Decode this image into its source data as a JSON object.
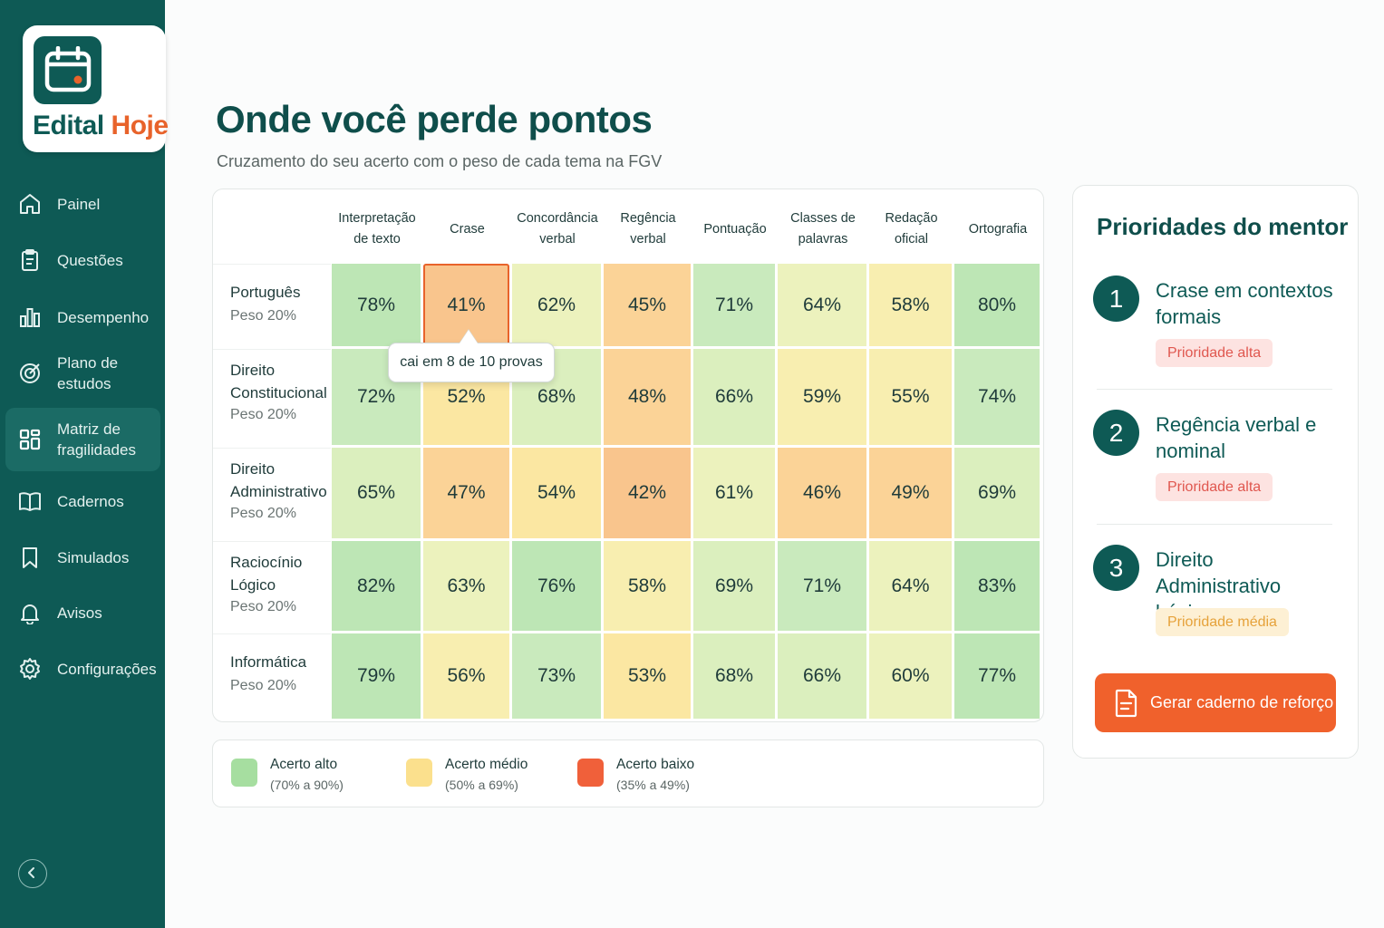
{
  "brand": {
    "part1": "Edital",
    "part2": "Hoje"
  },
  "nav": [
    {
      "label": "Painel",
      "icon": "home-icon",
      "active": false
    },
    {
      "label": "Questões",
      "icon": "clipboard-icon",
      "active": false
    },
    {
      "label": "Desempenho",
      "icon": "bar-chart-icon",
      "active": false
    },
    {
      "label": "Plano de estudos",
      "icon": "target-icon",
      "active": false
    },
    {
      "label": "Matriz de fragilidades",
      "icon": "grid-icon",
      "active": true
    },
    {
      "label": "Cadernos",
      "icon": "book-icon",
      "active": false
    },
    {
      "label": "Simulados",
      "icon": "bookmark-icon",
      "active": false
    },
    {
      "label": "Avisos",
      "icon": "bell-icon",
      "active": false
    },
    {
      "label": "Configurações",
      "icon": "gear-icon",
      "active": false
    }
  ],
  "header": {
    "title": "Onde você perde pontos",
    "subtitle": "Cruzamento do seu acerto com o peso de cada tema na FGV"
  },
  "matrix": {
    "columns": [
      "Interpretação de texto",
      "Crase",
      "Concordância verbal",
      "Regência verbal",
      "Pontuação",
      "Classes de palavras",
      "Redação oficial",
      "Ortografia"
    ],
    "rows": [
      {
        "subject": "Português",
        "weight": "Peso 20%",
        "values": [
          "78%",
          "41%",
          "62%",
          "45%",
          "71%",
          "64%",
          "58%",
          "80%"
        ]
      },
      {
        "subject": "Direito Constitucional",
        "weight": "Peso 20%",
        "values": [
          "72%",
          "52%",
          "68%",
          "48%",
          "66%",
          "59%",
          "55%",
          "74%"
        ]
      },
      {
        "subject": "Direito Administrativo",
        "weight": "Peso 20%",
        "values": [
          "65%",
          "47%",
          "54%",
          "42%",
          "61%",
          "46%",
          "49%",
          "69%"
        ]
      },
      {
        "subject": "Raciocínio Lógico",
        "weight": "Peso 20%",
        "values": [
          "82%",
          "63%",
          "76%",
          "58%",
          "69%",
          "71%",
          "64%",
          "83%"
        ]
      },
      {
        "subject": "Informática",
        "weight": "Peso 20%",
        "values": [
          "79%",
          "56%",
          "73%",
          "53%",
          "68%",
          "66%",
          "60%",
          "77%"
        ]
      }
    ],
    "highlighted": {
      "row": 0,
      "col": 1
    },
    "tooltip": "cai em 8 de 10 provas"
  },
  "legend": [
    {
      "title": "Acerto alto",
      "range": "(70% a 90%)",
      "color": "#a6dea0"
    },
    {
      "title": "Acerto médio",
      "range": "(50% a 69%)",
      "color": "#fbe08d"
    },
    {
      "title": "Acerto baixo",
      "range": "(35% a 49%)",
      "color": "#f0603a"
    }
  ],
  "mentor": {
    "title": "Prioridades do mentor",
    "items": [
      {
        "num": "1",
        "title": "Crase em contextos formais",
        "badge": "Prioridade alta",
        "level": "high"
      },
      {
        "num": "2",
        "title": "Regência verbal e nominal",
        "badge": "Prioridade alta",
        "level": "high"
      },
      {
        "num": "3",
        "title": "Direito Administrativo básico",
        "badge": "Prioridade média",
        "level": "medium"
      }
    ],
    "cta": "Gerar caderno de reforço"
  },
  "colors": {
    "primary": "#0e5a55",
    "accent": "#e8632b",
    "cta": "#f0612c"
  }
}
